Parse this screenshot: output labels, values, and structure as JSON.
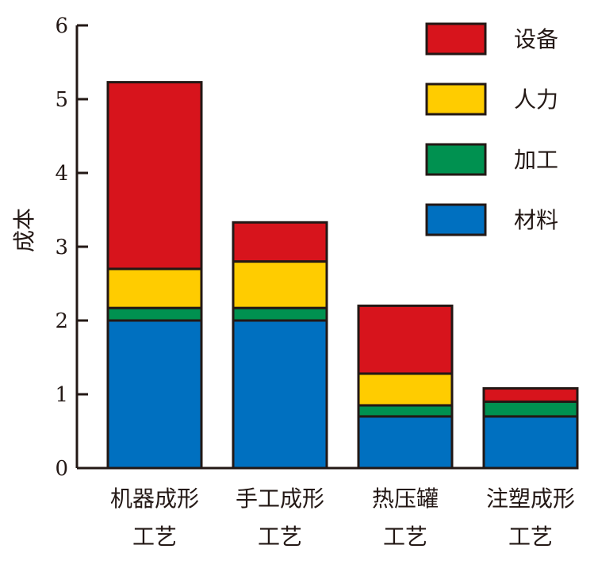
{
  "chart_data": {
    "type": "bar",
    "stacked": true,
    "categories": [
      [
        "机器成形",
        "工艺"
      ],
      [
        "手工成形",
        "工艺"
      ],
      [
        "热压罐",
        "工艺"
      ],
      [
        "注塑成形",
        "工艺"
      ]
    ],
    "series": [
      {
        "name": "材料",
        "color": "#0070c0",
        "values": [
          2.0,
          2.0,
          0.7,
          0.7
        ]
      },
      {
        "name": "加工",
        "color": "#009150",
        "values": [
          0.17,
          0.17,
          0.15,
          0.2
        ]
      },
      {
        "name": "人力",
        "color": "#ffcc00",
        "values": [
          0.53,
          0.63,
          0.43,
          0.0
        ]
      },
      {
        "name": "设备",
        "color": "#d7141c",
        "values": [
          2.53,
          0.53,
          0.92,
          0.18
        ]
      }
    ],
    "legend_order": [
      "设备",
      "人力",
      "加工",
      "材料"
    ],
    "ylabel": "成本",
    "xlabel": "",
    "ylim": [
      0,
      6
    ],
    "yticks": [
      0,
      1,
      2,
      3,
      4,
      5,
      6
    ],
    "grid": false,
    "legend_position": "top-right"
  }
}
